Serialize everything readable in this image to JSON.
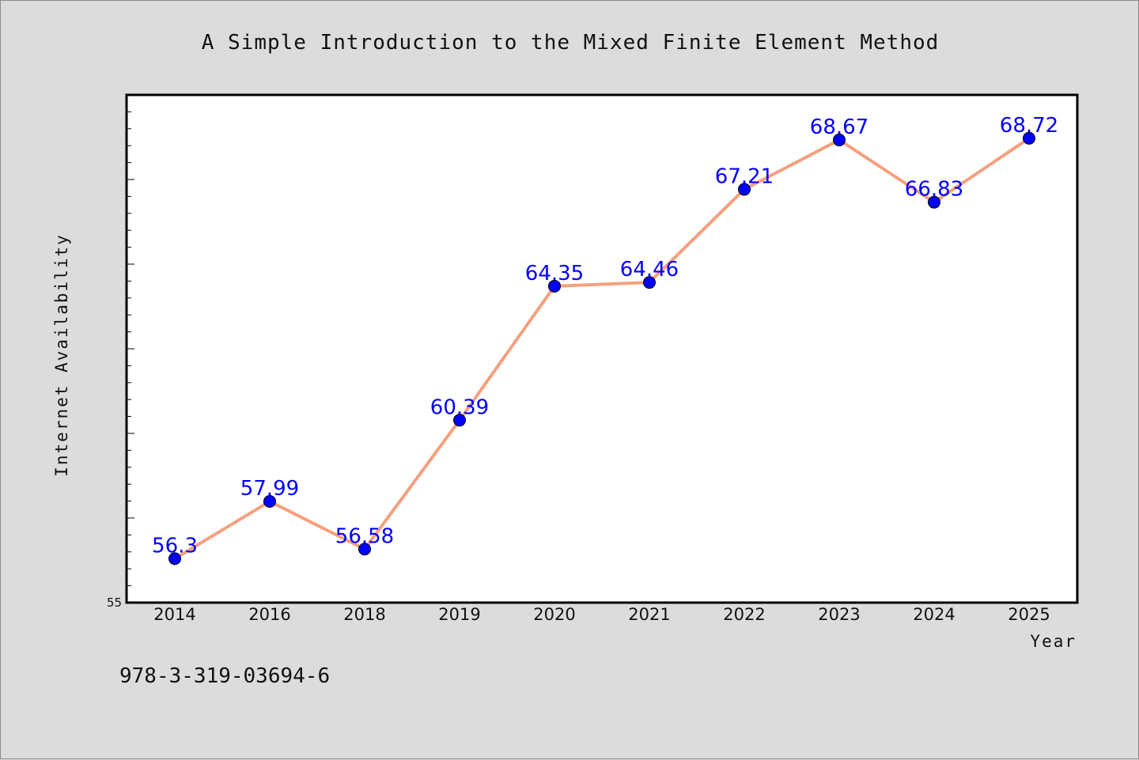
{
  "chart_data": {
    "type": "line",
    "title": "A Simple Introduction to the Mixed Finite Element Method",
    "xlabel": "Year",
    "ylabel": "Internet Availability",
    "categories": [
      "2014",
      "2016",
      "2018",
      "2019",
      "2020",
      "2021",
      "2022",
      "2023",
      "2024",
      "2025"
    ],
    "series": [
      {
        "values": [
          56.3,
          57.99,
          56.58,
          60.39,
          64.35,
          64.46,
          67.21,
          68.67,
          66.83,
          68.72
        ],
        "labels": [
          "56.3",
          "57.99",
          "56.58",
          "60.39",
          "64.35",
          "64.46",
          "67.21",
          "68.67",
          "66.83",
          "68.72"
        ],
        "line_color": "#f5a07e",
        "marker_color": "#0000ff"
      }
    ],
    "ylim": [
      55,
      70
    ],
    "y_min_label": "55",
    "grid": false,
    "legend": "none"
  },
  "footnote": "978-3-319-03694-6",
  "colors": {
    "background": "#dcdcdc",
    "plot_area": "#ffffff",
    "line": "#f5a07e",
    "markers": "#0000ff",
    "data_labels": "#0000ff"
  }
}
